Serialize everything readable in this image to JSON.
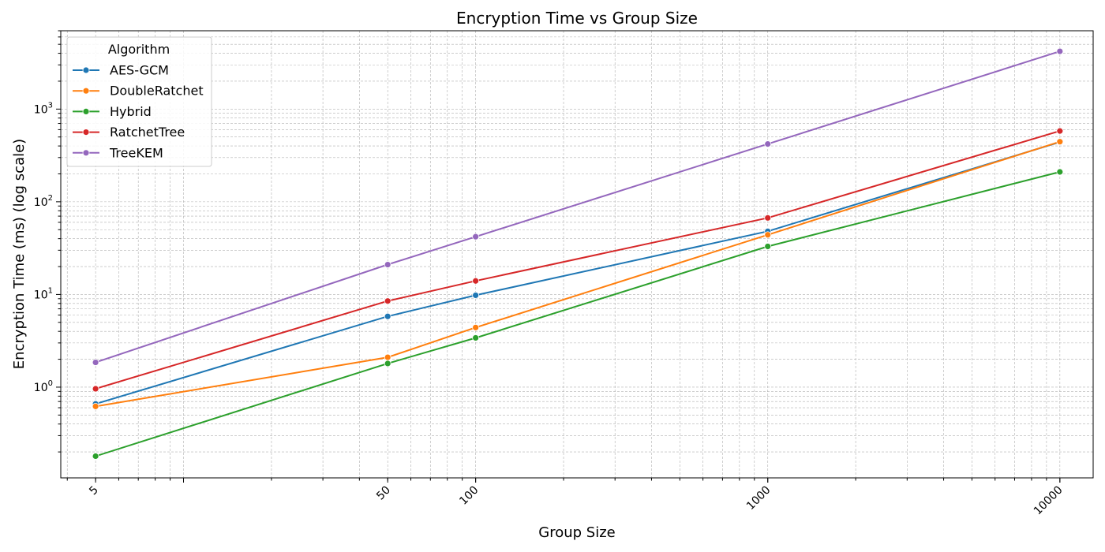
{
  "chart_data": {
    "type": "line",
    "title": "Encryption Time vs Group Size",
    "xlabel": "Group Size",
    "ylabel": "Encryption Time (ms) (log scale)",
    "x_scale": "log",
    "y_scale": "log",
    "x": [
      5,
      50,
      100,
      1000,
      10000
    ],
    "x_tick_labels": [
      "5",
      "50",
      "100",
      "1000",
      "10000"
    ],
    "xlim": [
      3.8,
      13000
    ],
    "ylim": [
      0.105,
      7000
    ],
    "y_ticks": [
      1,
      10,
      100,
      1000
    ],
    "grid": true,
    "legend_position": "top-left",
    "legend_title": "Algorithm",
    "series": [
      {
        "name": "AES-GCM",
        "color": "#1f77b4",
        "values": [
          0.66,
          5.8,
          9.8,
          48,
          440
        ]
      },
      {
        "name": "DoubleRatchet",
        "color": "#ff7f0e",
        "values": [
          0.62,
          2.1,
          4.4,
          44,
          445
        ]
      },
      {
        "name": "Hybrid",
        "color": "#2ca02c",
        "values": [
          0.18,
          1.8,
          3.4,
          33,
          210
        ]
      },
      {
        "name": "RatchetTree",
        "color": "#d62728",
        "values": [
          0.96,
          8.5,
          14,
          67,
          580
        ]
      },
      {
        "name": "TreeKEM",
        "color": "#9467bd",
        "values": [
          1.85,
          21,
          42,
          420,
          4200
        ]
      }
    ]
  }
}
